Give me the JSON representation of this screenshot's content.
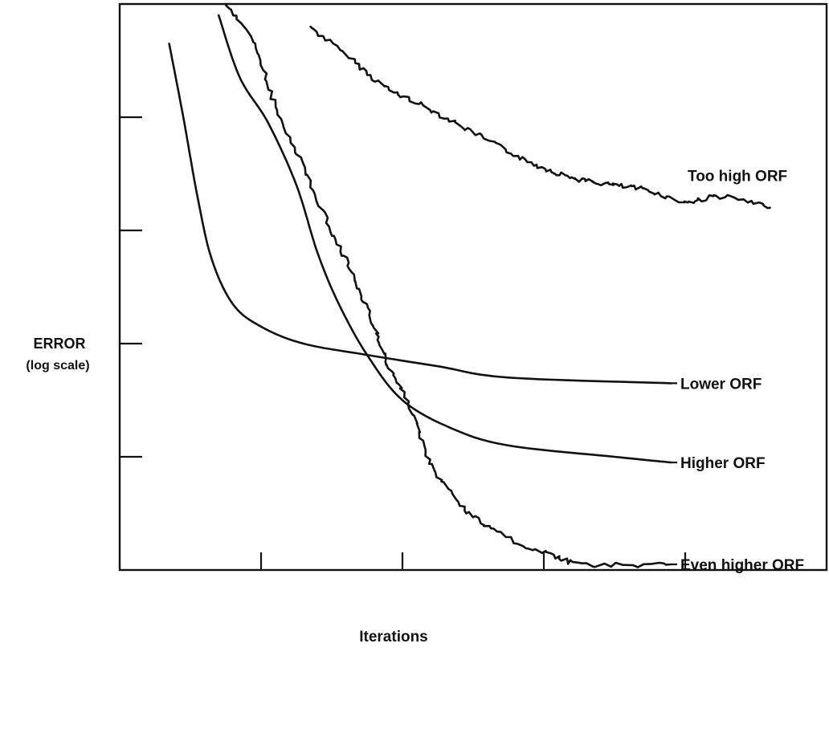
{
  "chart_data": {
    "type": "line",
    "title": "",
    "ylabel": "ERROR",
    "ylabel_sub": "(log scale)",
    "xlabel": "Iterations",
    "x_ticks": 4,
    "y_ticks": 4,
    "grid": false,
    "legend": "inline labels at right end of each curve",
    "series": [
      {
        "name": "Too high ORF",
        "noisy": true,
        "points": [
          [
            0.27,
            0.04
          ],
          [
            0.33,
            0.1
          ],
          [
            0.38,
            0.15
          ],
          [
            0.43,
            0.18
          ],
          [
            0.49,
            0.22
          ],
          [
            0.55,
            0.26
          ],
          [
            0.6,
            0.29
          ],
          [
            0.65,
            0.31
          ],
          [
            0.7,
            0.32
          ],
          [
            0.75,
            0.33
          ],
          [
            0.8,
            0.35
          ],
          [
            0.85,
            0.34
          ],
          [
            0.92,
            0.36
          ]
        ]
      },
      {
        "name": "Lower ORF",
        "noisy": false,
        "points": [
          [
            0.07,
            0.07
          ],
          [
            0.09,
            0.2
          ],
          [
            0.11,
            0.34
          ],
          [
            0.13,
            0.45
          ],
          [
            0.16,
            0.53
          ],
          [
            0.2,
            0.57
          ],
          [
            0.26,
            0.6
          ],
          [
            0.35,
            0.62
          ],
          [
            0.45,
            0.64
          ],
          [
            0.55,
            0.66
          ],
          [
            0.78,
            0.67
          ]
        ]
      },
      {
        "name": "Higher ORF",
        "noisy": false,
        "points": [
          [
            0.14,
            0.02
          ],
          [
            0.17,
            0.13
          ],
          [
            0.21,
            0.21
          ],
          [
            0.25,
            0.32
          ],
          [
            0.28,
            0.44
          ],
          [
            0.31,
            0.53
          ],
          [
            0.35,
            0.62
          ],
          [
            0.4,
            0.7
          ],
          [
            0.47,
            0.75
          ],
          [
            0.55,
            0.78
          ],
          [
            0.7,
            0.8
          ],
          [
            0.78,
            0.81
          ]
        ]
      },
      {
        "name": "Even higher ORF",
        "noisy": true,
        "points": [
          [
            0.15,
            0.0
          ],
          [
            0.19,
            0.07
          ],
          [
            0.22,
            0.18
          ],
          [
            0.26,
            0.29
          ],
          [
            0.3,
            0.4
          ],
          [
            0.33,
            0.48
          ],
          [
            0.36,
            0.57
          ],
          [
            0.38,
            0.64
          ],
          [
            0.41,
            0.71
          ],
          [
            0.44,
            0.81
          ],
          [
            0.48,
            0.88
          ],
          [
            0.53,
            0.93
          ],
          [
            0.6,
            0.97
          ],
          [
            0.66,
            0.99
          ],
          [
            0.78,
            0.99
          ]
        ]
      }
    ]
  }
}
